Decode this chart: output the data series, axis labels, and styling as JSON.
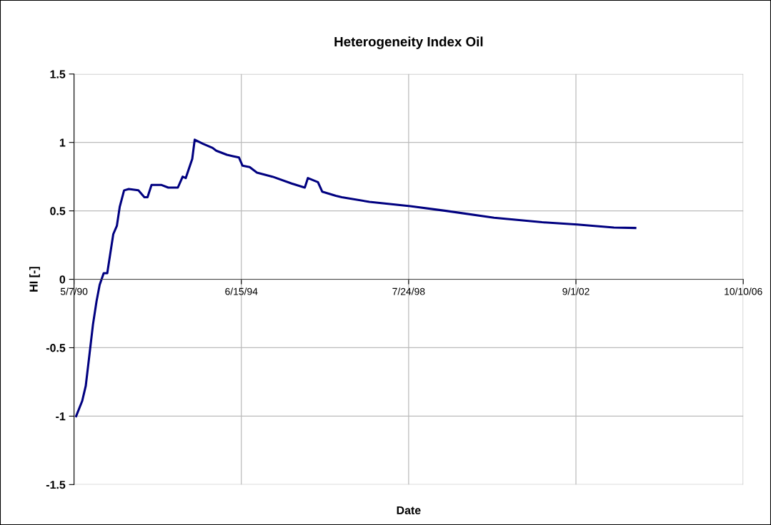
{
  "chart_data": {
    "type": "line",
    "title": "Heterogeneity Index Oil",
    "xlabel": "Date",
    "ylabel": "HI [-]",
    "x": [
      "1990-05-26",
      "1990-07-19",
      "1990-08-20",
      "1990-09-21",
      "1990-10-24",
      "1990-11-25",
      "1990-12-23",
      "1991-01-28",
      "1991-03-01",
      "1991-04-24",
      "1991-05-26",
      "1991-06-21",
      "1991-07-30",
      "1991-09-10",
      "1991-12-05",
      "1992-01-28",
      "1992-02-25",
      "1992-04-01",
      "1992-06-26",
      "1992-08-29",
      "1992-11-23",
      "1993-01-05",
      "1993-02-02",
      "1993-04-01",
      "1993-04-23",
      "1993-07-07",
      "1993-10-01",
      "1993-11-02",
      "1994-02-06",
      "1994-04-01",
      "1994-05-25",
      "1994-06-26",
      "1994-08-29",
      "1994-11-02",
      "1995-03-21",
      "1995-09-09",
      "1996-01-05",
      "1996-02-02",
      "1996-05-02",
      "1996-06-10",
      "1996-10-10",
      "1996-12-02",
      "1997-08-07",
      "1998-08-07",
      "1999-06-25",
      "2000-08-28",
      "2001-11-01",
      "2002-09-13",
      "2003-08-07",
      "2004-02-15"
    ],
    "series": [
      {
        "color": "#000080",
        "values": [
          -1.0,
          -0.89,
          -0.78,
          -0.56,
          -0.33,
          -0.16,
          -0.04,
          0.045,
          0.045,
          0.33,
          0.39,
          0.53,
          0.65,
          0.66,
          0.65,
          0.6,
          0.6,
          0.69,
          0.69,
          0.67,
          0.67,
          0.75,
          0.74,
          0.88,
          1.02,
          0.99,
          0.96,
          0.94,
          0.91,
          0.9,
          0.89,
          0.83,
          0.82,
          0.78,
          0.75,
          0.7,
          0.67,
          0.74,
          0.71,
          0.64,
          0.61,
          0.6,
          0.566,
          0.535,
          0.5,
          0.45,
          0.417,
          0.4,
          0.378,
          0.375
        ]
      }
    ],
    "xlim": [
      "1990-05-07",
      "2006-10-10"
    ],
    "xticks": [
      {
        "value": "1990-05-07",
        "label": "5/7/90"
      },
      {
        "value": "1994-06-15",
        "label": "6/15/94"
      },
      {
        "value": "1998-07-24",
        "label": "7/24/98"
      },
      {
        "value": "2002-09-01",
        "label": "9/1/02"
      },
      {
        "value": "2006-10-10",
        "label": "10/10/06"
      }
    ],
    "ylim": [
      -1.5,
      1.5
    ],
    "yticks": [
      -1.5,
      -1,
      -0.5,
      0,
      0.5,
      1,
      1.5
    ],
    "grid": true,
    "marker": "none",
    "line_style": "solid"
  }
}
